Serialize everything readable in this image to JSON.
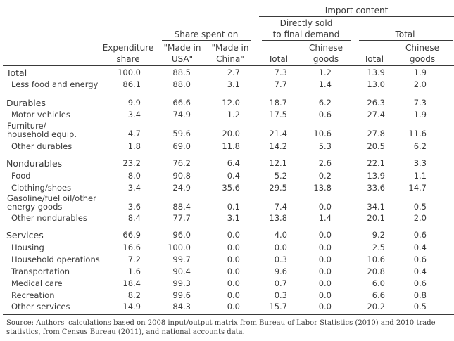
{
  "header": {
    "import_content": "Import content",
    "directly_sold_1": "Directly sold",
    "directly_sold_2": "to final demand",
    "total_group": "Total",
    "share_spent_on": "Share spent on",
    "col_expenditure_1": "Expenditure",
    "col_expenditure_2": "share",
    "col_made_usa_1": "\"Made in",
    "col_made_usa_2": "USA\"",
    "col_made_china_1": "\"Made in",
    "col_made_china_2": "China\"",
    "col_total": "Total",
    "col_chinese_1": "Chinese",
    "col_chinese_2": "goods",
    "col_total2": "Total",
    "col_chinese2_1": "Chinese",
    "col_chinese2_2": "goods"
  },
  "rows": [
    {
      "label": "Total",
      "values": [
        "100.0",
        "88.5",
        "2.7",
        "7.3",
        "1.2",
        "13.9",
        "1.9"
      ]
    },
    {
      "label": "Less food and energy",
      "values": [
        "86.1",
        "88.0",
        "3.1",
        "7.7",
        "1.4",
        "13.0",
        "2.0"
      ]
    },
    {
      "label": "Durables",
      "values": [
        "9.9",
        "66.6",
        "12.0",
        "18.7",
        "6.2",
        "26.3",
        "7.3"
      ]
    },
    {
      "label": "Motor vehicles",
      "values": [
        "3.4",
        "74.9",
        "1.2",
        "17.5",
        "0.6",
        "27.4",
        "1.9"
      ]
    },
    {
      "label_line1": "Furniture/",
      "label_line2": "household equip.",
      "values": [
        "4.7",
        "59.6",
        "20.0",
        "21.4",
        "10.6",
        "27.8",
        "11.6"
      ]
    },
    {
      "label": "Other durables",
      "values": [
        "1.8",
        "69.0",
        "11.8",
        "14.2",
        "5.3",
        "20.5",
        "6.2"
      ]
    },
    {
      "label": "Nondurables",
      "values": [
        "23.2",
        "76.2",
        "6.4",
        "12.1",
        "2.6",
        "22.1",
        "3.3"
      ]
    },
    {
      "label": "Food",
      "values": [
        "8.0",
        "90.8",
        "0.4",
        "5.2",
        "0.2",
        "13.9",
        "1.1"
      ]
    },
    {
      "label": "Clothing/shoes",
      "values": [
        "3.4",
        "24.9",
        "35.6",
        "29.5",
        "13.8",
        "33.6",
        "14.7"
      ]
    },
    {
      "label_line1": "Gasoline/fuel oil/other",
      "label_line2": "energy goods",
      "values": [
        "3.6",
        "88.4",
        "0.1",
        "7.4",
        "0.0",
        "34.1",
        "0.5"
      ]
    },
    {
      "label": "Other nondurables",
      "values": [
        "8.4",
        "77.7",
        "3.1",
        "13.8",
        "1.4",
        "20.1",
        "2.0"
      ]
    },
    {
      "label": "Services",
      "values": [
        "66.9",
        "96.0",
        "0.0",
        "4.0",
        "0.0",
        "9.2",
        "0.6"
      ]
    },
    {
      "label": "Housing",
      "values": [
        "16.6",
        "100.0",
        "0.0",
        "0.0",
        "0.0",
        "2.5",
        "0.4"
      ]
    },
    {
      "label": "Household operations",
      "values": [
        "7.2",
        "99.7",
        "0.0",
        "0.3",
        "0.0",
        "10.6",
        "0.6"
      ]
    },
    {
      "label": "Transportation",
      "values": [
        "1.6",
        "90.4",
        "0.0",
        "9.6",
        "0.0",
        "20.8",
        "0.4"
      ]
    },
    {
      "label": "Medical care",
      "values": [
        "18.4",
        "99.3",
        "0.0",
        "0.7",
        "0.0",
        "6.0",
        "0.6"
      ]
    },
    {
      "label": "Recreation",
      "values": [
        "8.2",
        "99.6",
        "0.0",
        "0.3",
        "0.0",
        "6.6",
        "0.8"
      ]
    },
    {
      "label": "Other services",
      "values": [
        "14.9",
        "84.3",
        "0.0",
        "15.7",
        "0.0",
        "20.2",
        "0.5"
      ]
    }
  ],
  "source": "Source: Authors' calculations based on 2008 input/output matrix from Bureau of Labor Statistics (2010) and 2010 trade statistics, from Census Bureau (2011), and national accounts data."
}
